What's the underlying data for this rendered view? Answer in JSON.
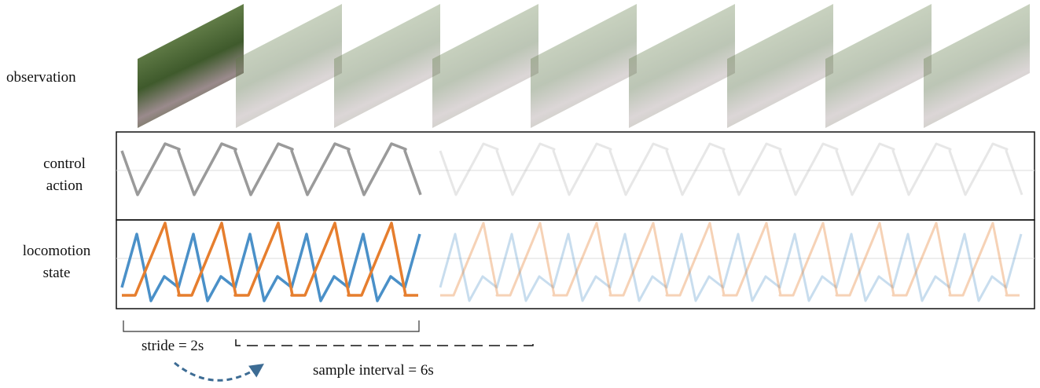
{
  "labels": {
    "observation": "observation",
    "control_action": [
      "control",
      "action"
    ],
    "locomotion_state": [
      "locomotion",
      "state"
    ]
  },
  "annotations": {
    "stride": "stride = 2s",
    "sample_interval": "sample interval = 6s"
  }
}
